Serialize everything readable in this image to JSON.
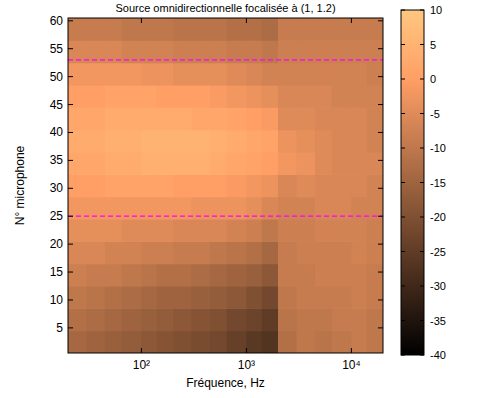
{
  "chart_data": {
    "type": "heatmap",
    "title": "Source omnidirectionnelle focalisée à (1, 1.2)",
    "x_label": "Fréquence, Hz",
    "y_label": "N° microphone",
    "log": "x",
    "xlim": [
      20,
      20000
    ],
    "ylim": [
      0.5,
      60.5
    ],
    "xticks": [
      {
        "value": 100,
        "label": "10²"
      },
      {
        "value": 1000,
        "label": "10³"
      },
      {
        "value": 10000,
        "label": "10⁴"
      }
    ],
    "yticks": [
      5,
      10,
      15,
      20,
      25,
      30,
      35,
      40,
      45,
      50,
      55,
      60
    ],
    "x_edges": [
      20,
      30,
      45,
      65,
      100,
      140,
      200,
      300,
      450,
      650,
      1000,
      1400,
      2000,
      3000,
      4500,
      6500,
      10000,
      14000,
      20000
    ],
    "y_edges": [
      0.5,
      4.5,
      8.5,
      12.5,
      16.5,
      20.5,
      24.5,
      28.5,
      32.5,
      36.5,
      40.5,
      44.5,
      48.5,
      52.5,
      56.5,
      60.5
    ],
    "z": [
      [
        -14,
        -15,
        -16,
        -17,
        -18,
        -19,
        -20,
        -21,
        -22,
        -24,
        -26,
        -27,
        -12,
        -10,
        -11,
        -10,
        -9,
        -10
      ],
      [
        -12,
        -13,
        -14,
        -15,
        -16,
        -17,
        -18,
        -19,
        -20,
        -22,
        -23,
        -25,
        -11,
        -10,
        -10,
        -9,
        -9,
        -10
      ],
      [
        -10,
        -11,
        -12,
        -13,
        -14,
        -15,
        -15,
        -16,
        -17,
        -18,
        -20,
        -22,
        -10,
        -9,
        -9,
        -9,
        -8,
        -9
      ],
      [
        -8,
        -9,
        -9,
        -10,
        -11,
        -12,
        -12,
        -13,
        -14,
        -15,
        -16,
        -18,
        -9,
        -9,
        -8,
        -8,
        -8,
        -9
      ],
      [
        -6,
        -6,
        -7,
        -7,
        -8,
        -8,
        -9,
        -9,
        -10,
        -11,
        -12,
        -14,
        -9,
        -8,
        -8,
        -8,
        -7,
        -8
      ],
      [
        -4,
        -4,
        -4,
        -5,
        -5,
        -5,
        -6,
        -6,
        -6,
        -7,
        -8,
        -10,
        -8,
        -8,
        -7,
        -7,
        -7,
        -8
      ],
      [
        -2,
        -2,
        -2,
        -2,
        -2,
        -2,
        -2,
        -3,
        -3,
        -3,
        -4,
        -6,
        -7,
        -7,
        -6,
        -6,
        -7,
        -7
      ],
      [
        0,
        0,
        1,
        1,
        1,
        1,
        0,
        0,
        0,
        -1,
        -2,
        -3,
        -6,
        -5,
        -6,
        -6,
        -6,
        -7
      ],
      [
        2,
        2,
        3,
        3,
        4,
        4,
        4,
        4,
        3,
        2,
        1,
        0,
        -2,
        -3,
        -5,
        -6,
        -6,
        -6
      ],
      [
        3,
        3,
        4,
        4,
        5,
        5,
        5,
        5,
        4,
        3,
        2,
        1,
        -3,
        -4,
        -5,
        -6,
        -6,
        -7
      ],
      [
        2,
        2,
        3,
        3,
        3,
        3,
        3,
        2,
        2,
        1,
        0,
        -1,
        -5,
        -5,
        -6,
        -6,
        -6,
        -7
      ],
      [
        0,
        0,
        1,
        1,
        1,
        0,
        0,
        0,
        -1,
        -2,
        -3,
        -4,
        -6,
        -6,
        -6,
        -7,
        -7,
        -7
      ],
      [
        -2,
        -2,
        -2,
        -2,
        -3,
        -3,
        -4,
        -4,
        -4,
        -5,
        -6,
        -7,
        -7,
        -7,
        -7,
        -7,
        -7,
        -8
      ],
      [
        -6,
        -6,
        -6,
        -7,
        -7,
        -7,
        -8,
        -8,
        -8,
        -9,
        -9,
        -10,
        -8,
        -8,
        -8,
        -8,
        -8,
        -8
      ],
      [
        -9,
        -9,
        -9,
        -10,
        -10,
        -10,
        -11,
        -11,
        -11,
        -12,
        -12,
        -13,
        -9,
        -9,
        -9,
        -9,
        -9,
        -9
      ]
    ],
    "color_range": [
      -40,
      10
    ],
    "color_ticks": [
      10,
      5,
      0,
      -5,
      -10,
      -15,
      -20,
      -25,
      -30,
      -35,
      -40
    ],
    "reference_lines": [
      25,
      53
    ]
  }
}
